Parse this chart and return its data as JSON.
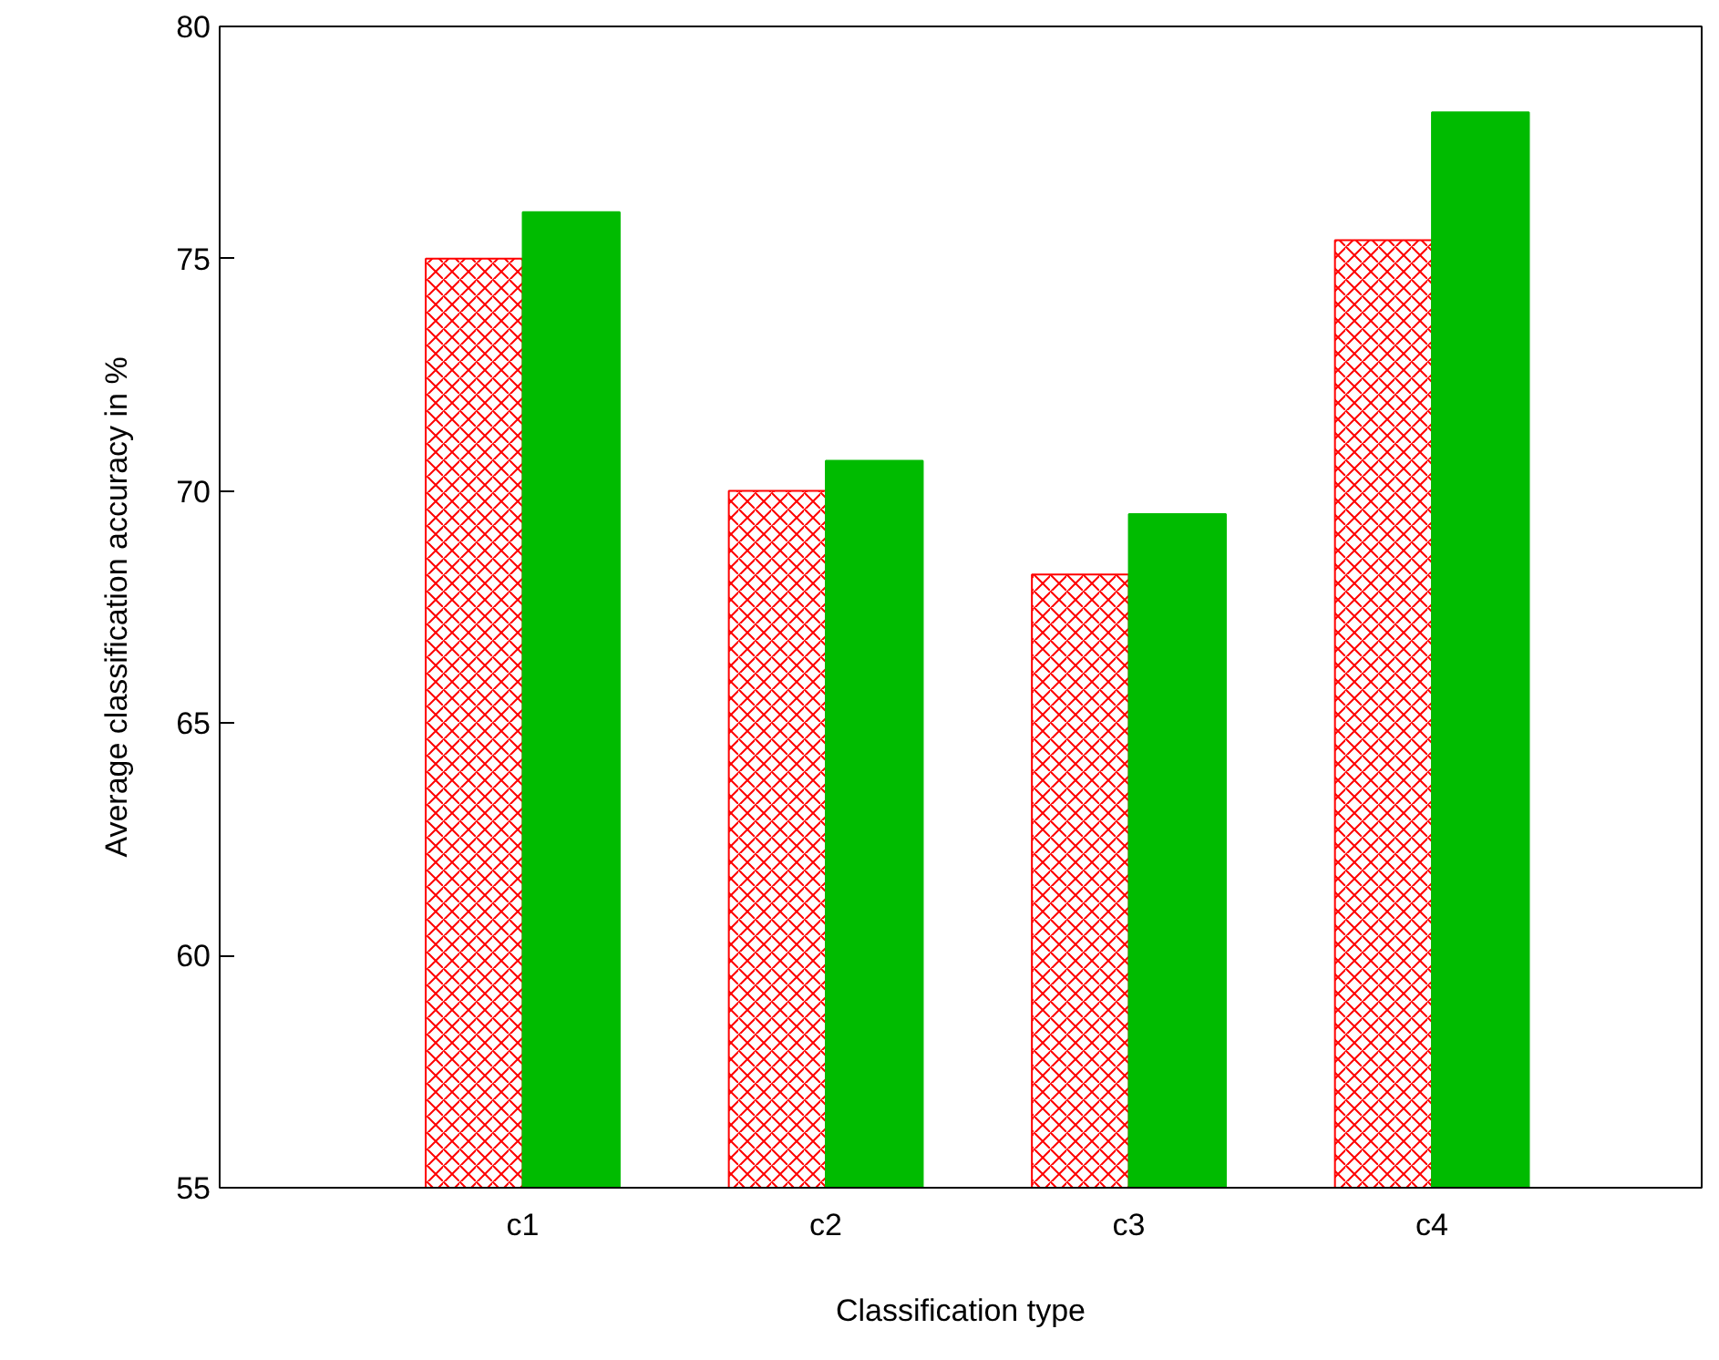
{
  "chart_data": {
    "type": "bar",
    "xlabel": "Classification type",
    "ylabel": "Average classification accuracy in %",
    "categories": [
      "c1",
      "c2",
      "c3",
      "c4"
    ],
    "series": [
      {
        "color": "#ff0000",
        "values": [
          75.0,
          70.0,
          68.2,
          75.4
        ]
      },
      {
        "color": "#00bb00",
        "values": [
          76.0,
          70.65,
          69.5,
          78.15
        ]
      }
    ],
    "ylim": [
      55,
      80
    ],
    "yticks": [
      55,
      60,
      65,
      70,
      75,
      80
    ],
    "grid": false
  }
}
